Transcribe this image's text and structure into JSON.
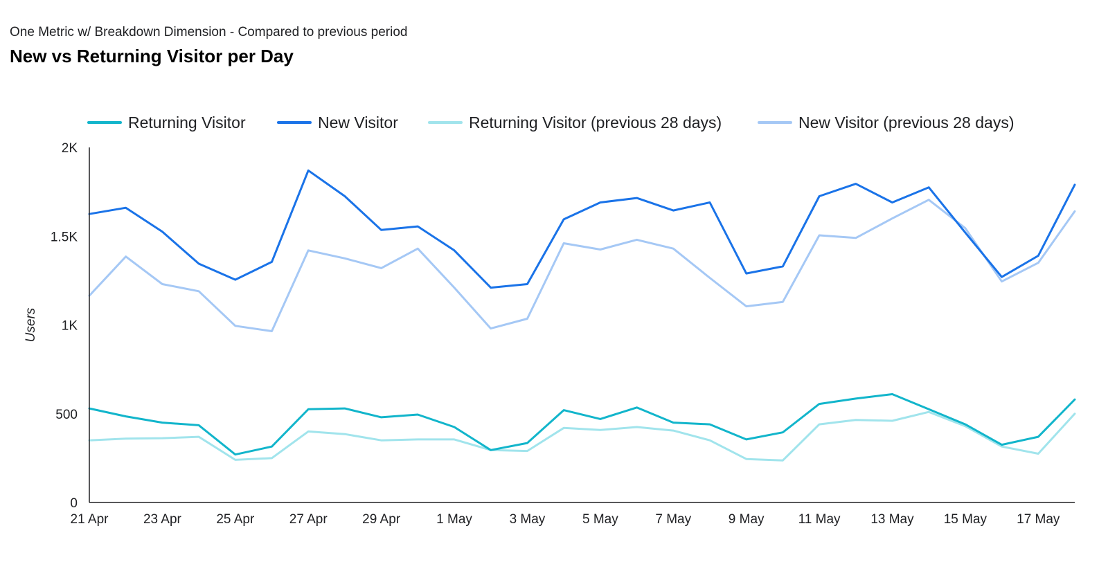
{
  "chart_data": {
    "type": "line",
    "subtitle": "One Metric w/ Breakdown Dimension - Compared to previous period",
    "title": "New vs Returning Visitor per Day",
    "xlabel": "",
    "ylabel": "Users",
    "ylim": [
      0,
      2000
    ],
    "y_ticks": [
      {
        "value": 0,
        "label": "0"
      },
      {
        "value": 500,
        "label": "500"
      },
      {
        "value": 1000,
        "label": "1K"
      },
      {
        "value": 1500,
        "label": "1.5K"
      },
      {
        "value": 2000,
        "label": "2K"
      }
    ],
    "x": [
      "21 Apr",
      "22 Apr",
      "23 Apr",
      "24 Apr",
      "25 Apr",
      "26 Apr",
      "27 Apr",
      "28 Apr",
      "29 Apr",
      "30 Apr",
      "1 May",
      "2 May",
      "3 May",
      "4 May",
      "5 May",
      "6 May",
      "7 May",
      "8 May",
      "9 May",
      "10 May",
      "11 May",
      "12 May",
      "13 May",
      "14 May",
      "15 May",
      "16 May",
      "17 May",
      "18 May"
    ],
    "x_tick_labels": [
      "21 Apr",
      "23 Apr",
      "25 Apr",
      "27 Apr",
      "29 Apr",
      "1 May",
      "3 May",
      "5 May",
      "7 May",
      "9 May",
      "11 May",
      "13 May",
      "15 May",
      "17 May"
    ],
    "grid": false,
    "legend_position": "top",
    "series": [
      {
        "name": "Returning Visitor",
        "color": "#12b5cb",
        "values": [
          530,
          485,
          450,
          435,
          270,
          315,
          525,
          530,
          480,
          495,
          425,
          295,
          335,
          520,
          470,
          535,
          450,
          440,
          355,
          395,
          555,
          585,
          610,
          525,
          440,
          325,
          370,
          580
        ]
      },
      {
        "name": "New Visitor",
        "color": "#1a73e8",
        "values": [
          1625,
          1660,
          1525,
          1345,
          1255,
          1355,
          1870,
          1725,
          1535,
          1555,
          1420,
          1210,
          1230,
          1595,
          1690,
          1715,
          1645,
          1690,
          1290,
          1330,
          1725,
          1795,
          1690,
          1775,
          1520,
          1270,
          1390,
          1790
        ]
      },
      {
        "name": "Returning Visitor (previous 28 days)",
        "color": "#a1e4ec",
        "values": [
          350,
          360,
          362,
          370,
          240,
          250,
          400,
          385,
          350,
          355,
          355,
          295,
          290,
          420,
          408,
          425,
          405,
          350,
          245,
          237,
          440,
          465,
          460,
          510,
          430,
          315,
          275,
          500
        ]
      },
      {
        "name": "New Visitor (previous 28 days)",
        "color": "#a5c8f5",
        "values": [
          1165,
          1385,
          1230,
          1190,
          995,
          965,
          1420,
          1375,
          1320,
          1430,
          1210,
          980,
          1035,
          1460,
          1425,
          1480,
          1430,
          1265,
          1105,
          1130,
          1505,
          1490,
          1600,
          1705,
          1545,
          1245,
          1350,
          1640
        ]
      }
    ]
  }
}
